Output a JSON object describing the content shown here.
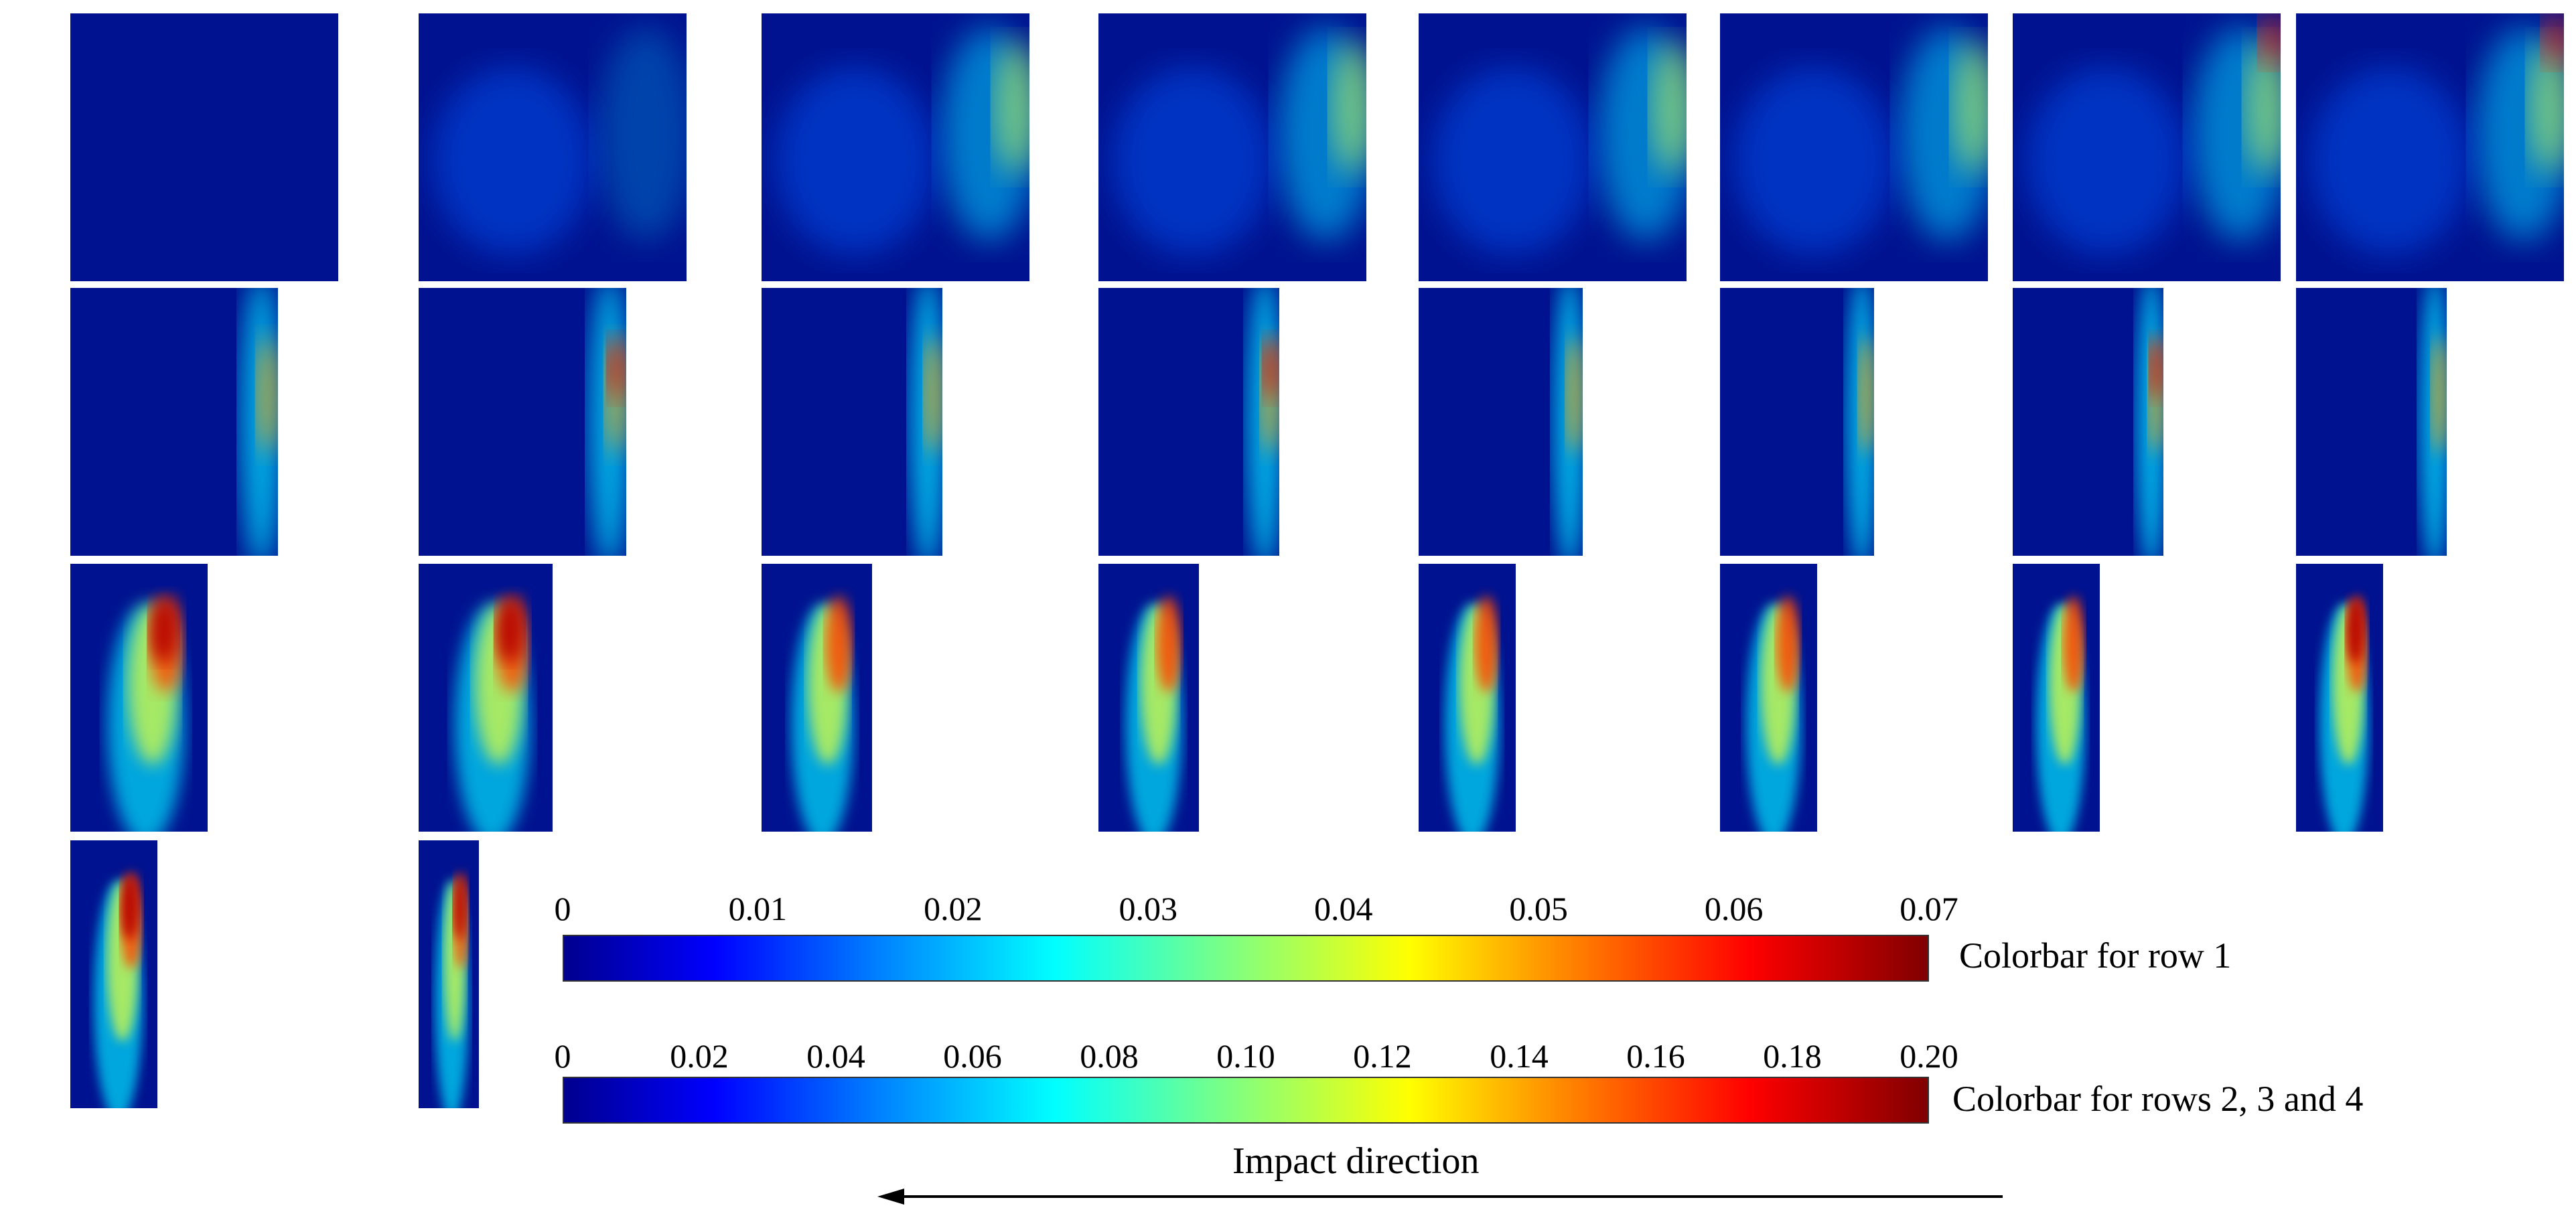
{
  "colorbar_row1": {
    "title": "Colorbar for row 1",
    "ticks": [
      "0",
      "0.01",
      "0.02",
      "0.03",
      "0.04",
      "0.05",
      "0.06",
      "0.07"
    ],
    "range": [
      0,
      0.07
    ]
  },
  "colorbar_rows234": {
    "title": "Colorbar for rows 2, 3 and 4",
    "ticks": [
      "0",
      "0.02",
      "0.04",
      "0.06",
      "0.08",
      "0.10",
      "0.12",
      "0.14",
      "0.16",
      "0.18",
      "0.20"
    ],
    "range": [
      0,
      0.2
    ]
  },
  "direction": {
    "label": "Impact direction",
    "arrow": "left"
  },
  "colors": {
    "background": "#00128f",
    "arrow": "#000000"
  },
  "grid": {
    "rows": 4,
    "columns_per_row": [
      8,
      8,
      8,
      2
    ]
  }
}
